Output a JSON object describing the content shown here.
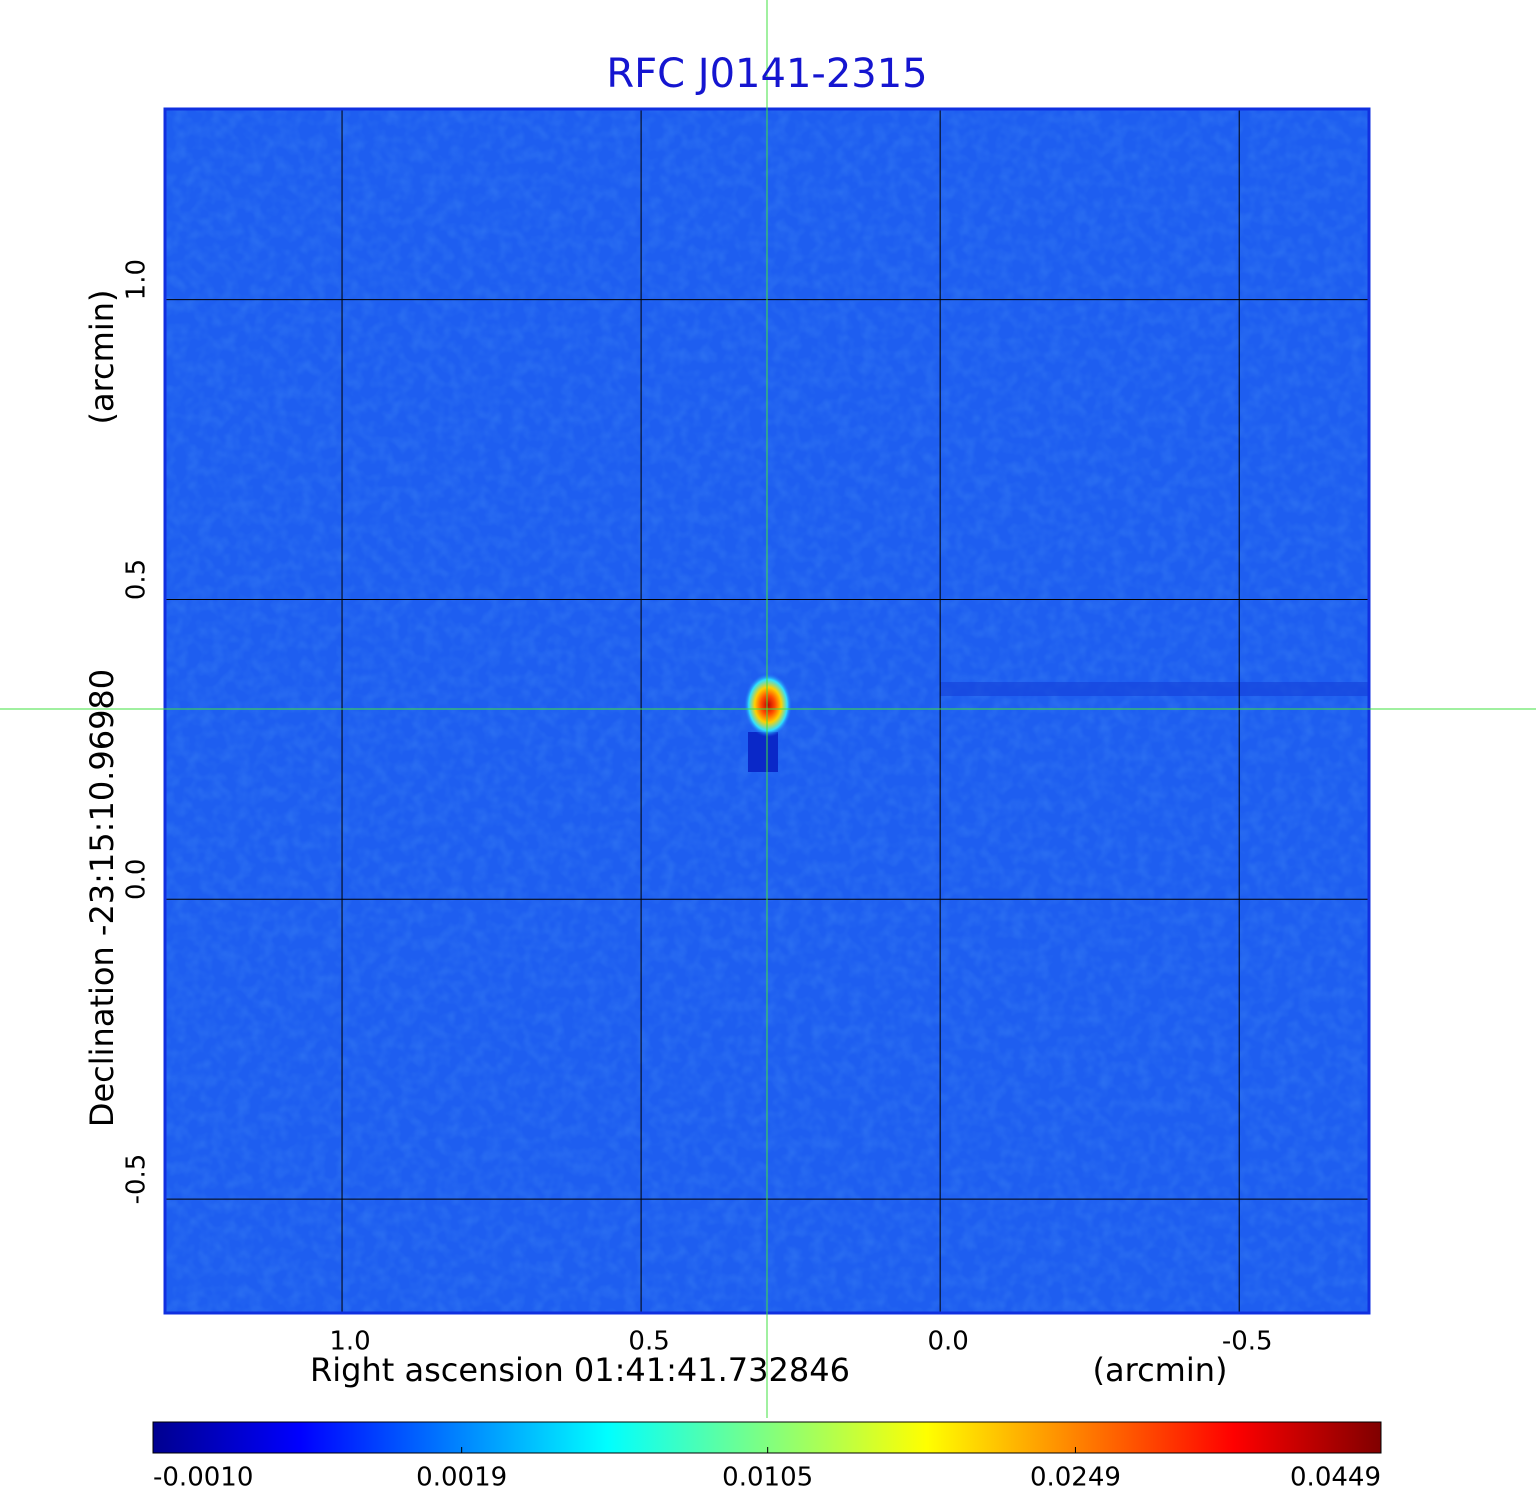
{
  "chart_data": {
    "type": "image",
    "title": "RFC J0141-2315",
    "x_label": "Right ascension  01:41:41.732846",
    "x_unit": "(arcmin)",
    "y_label": "Declination  -23:15:10.96980",
    "y_unit": "(arcmin)",
    "xlim": [
      1.296,
      -0.717
    ],
    "ylim": [
      -0.69,
      1.318
    ],
    "xticks": [
      {
        "value": 1,
        "label": "1.0"
      },
      {
        "value": 0.5,
        "label": "0.5"
      },
      {
        "value": 0,
        "label": "0.0"
      },
      {
        "value": -0.5,
        "label": "-0.5"
      }
    ],
    "yticks": [
      {
        "value": 1,
        "label": "1.0"
      },
      {
        "value": 0.5,
        "label": "0.5"
      },
      {
        "value": 0,
        "label": "0.0"
      },
      {
        "value": -0.5,
        "label": "-0.5"
      }
    ],
    "grid": true,
    "colorbar": {
      "scale": "sqrt",
      "lim": [
        -0.001,
        0.0449
      ],
      "ticks": [
        {
          "value": -0.001,
          "label": "-0.0010"
        },
        {
          "value": 0.0019,
          "label": "0.0019"
        },
        {
          "value": 0.0105,
          "label": "0.0105"
        },
        {
          "value": 0.0249,
          "label": "0.0249"
        },
        {
          "value": 0.0449,
          "label": "0.0449"
        }
      ]
    }
  }
}
